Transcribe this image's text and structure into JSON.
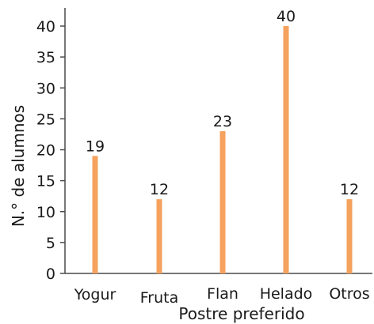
{
  "chart_data": {
    "type": "bar",
    "categories": [
      "Yogur",
      "Fruta",
      "Flan",
      "Helado",
      "Otros"
    ],
    "values": [
      19,
      12,
      23,
      40,
      12
    ],
    "data_labels": [
      "19",
      "12",
      "23",
      "40",
      "12"
    ],
    "xlabel": "Postre preferido",
    "ylabel": "N.° de alumnos",
    "ylim": [
      0,
      40
    ],
    "yticks": [
      0,
      5,
      10,
      15,
      20,
      25,
      30,
      35,
      40
    ],
    "grid": false,
    "bar_color": "#f5a25e"
  }
}
